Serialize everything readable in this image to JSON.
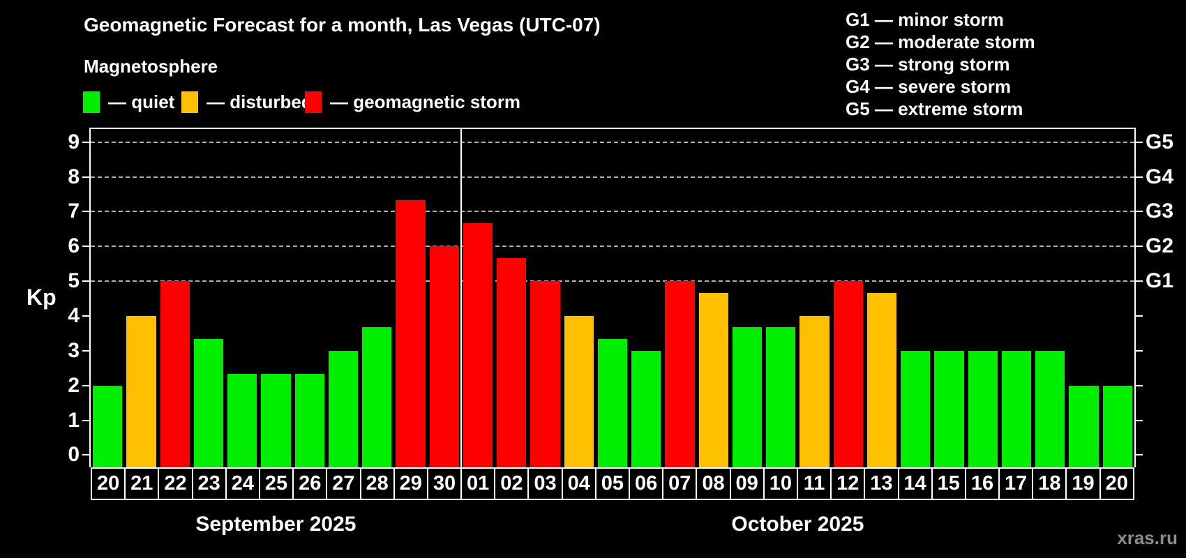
{
  "title": "Geomagnetic Forecast for a month, Las Vegas (UTC-07)",
  "subtitle": "Magnetosphere",
  "magnetosphere_legend": [
    {
      "key": "quiet",
      "label": "— quiet",
      "color": "#00ee00"
    },
    {
      "key": "disturbed",
      "label": "— disturbed",
      "color": "#ffc000"
    },
    {
      "key": "storm",
      "label": "— geomagnetic storm",
      "color": "#ff0000"
    }
  ],
  "g_scale_legend": [
    "G1 — minor storm",
    "G2 — moderate storm",
    "G3 — strong storm",
    "G4 — severe storm",
    "G5 — extreme storm"
  ],
  "watermark": "xras.ru",
  "chart_data": {
    "type": "bar",
    "title": "Geomagnetic Forecast for a month, Las Vegas (UTC-07)",
    "ylabel": "Kp",
    "ylim": [
      -0.375,
      9.375
    ],
    "y_ticks": [
      0,
      1,
      2,
      3,
      4,
      5,
      6,
      7,
      8,
      9
    ],
    "gridlines_at_kp": [
      5,
      6,
      7,
      8,
      9
    ],
    "grid": "dashed horizontal lines at Kp 5-9 only",
    "legend_position": "top",
    "right_axis_labels": [
      {
        "kp": 5,
        "label": "G1"
      },
      {
        "kp": 6,
        "label": "G2"
      },
      {
        "kp": 7,
        "label": "G3"
      },
      {
        "kp": 8,
        "label": "G4"
      },
      {
        "kp": 9,
        "label": "G5"
      }
    ],
    "months": [
      {
        "label": "September 2025"
      },
      {
        "label": "October 2025"
      }
    ],
    "bars": [
      {
        "month": 0,
        "day": "20",
        "kp": 2,
        "status": "quiet"
      },
      {
        "month": 0,
        "day": "21",
        "kp": 4,
        "status": "disturbed"
      },
      {
        "month": 0,
        "day": "22",
        "kp": 5,
        "status": "storm"
      },
      {
        "month": 0,
        "day": "23",
        "kp": 3.33,
        "status": "quiet"
      },
      {
        "month": 0,
        "day": "24",
        "kp": 2.33,
        "status": "quiet"
      },
      {
        "month": 0,
        "day": "25",
        "kp": 2.33,
        "status": "quiet"
      },
      {
        "month": 0,
        "day": "26",
        "kp": 2.33,
        "status": "quiet"
      },
      {
        "month": 0,
        "day": "27",
        "kp": 3,
        "status": "quiet"
      },
      {
        "month": 0,
        "day": "28",
        "kp": 3.67,
        "status": "quiet"
      },
      {
        "month": 0,
        "day": "29",
        "kp": 7.33,
        "status": "storm"
      },
      {
        "month": 0,
        "day": "30",
        "kp": 6,
        "status": "storm"
      },
      {
        "month": 1,
        "day": "01",
        "kp": 6.67,
        "status": "storm"
      },
      {
        "month": 1,
        "day": "02",
        "kp": 5.67,
        "status": "storm"
      },
      {
        "month": 1,
        "day": "03",
        "kp": 5,
        "status": "storm"
      },
      {
        "month": 1,
        "day": "04",
        "kp": 4,
        "status": "disturbed"
      },
      {
        "month": 1,
        "day": "05",
        "kp": 3.33,
        "status": "quiet"
      },
      {
        "month": 1,
        "day": "06",
        "kp": 3,
        "status": "quiet"
      },
      {
        "month": 1,
        "day": "07",
        "kp": 5,
        "status": "storm"
      },
      {
        "month": 1,
        "day": "08",
        "kp": 4.67,
        "status": "disturbed"
      },
      {
        "month": 1,
        "day": "09",
        "kp": 3.67,
        "status": "quiet"
      },
      {
        "month": 1,
        "day": "10",
        "kp": 3.67,
        "status": "quiet"
      },
      {
        "month": 1,
        "day": "11",
        "kp": 4,
        "status": "disturbed"
      },
      {
        "month": 1,
        "day": "12",
        "kp": 5,
        "status": "storm"
      },
      {
        "month": 1,
        "day": "13",
        "kp": 4.67,
        "status": "disturbed"
      },
      {
        "month": 1,
        "day": "14",
        "kp": 3,
        "status": "quiet"
      },
      {
        "month": 1,
        "day": "15",
        "kp": 3,
        "status": "quiet"
      },
      {
        "month": 1,
        "day": "16",
        "kp": 3,
        "status": "quiet"
      },
      {
        "month": 1,
        "day": "17",
        "kp": 3,
        "status": "quiet"
      },
      {
        "month": 1,
        "day": "18",
        "kp": 3,
        "status": "quiet"
      },
      {
        "month": 1,
        "day": "19",
        "kp": 2,
        "status": "quiet"
      },
      {
        "month": 1,
        "day": "20",
        "kp": 2,
        "status": "quiet"
      }
    ],
    "colors": {
      "grid": "#b0b0b0",
      "axis": "#ffffff",
      "watermark": "#8c8c8c",
      "background": "#000000"
    }
  }
}
